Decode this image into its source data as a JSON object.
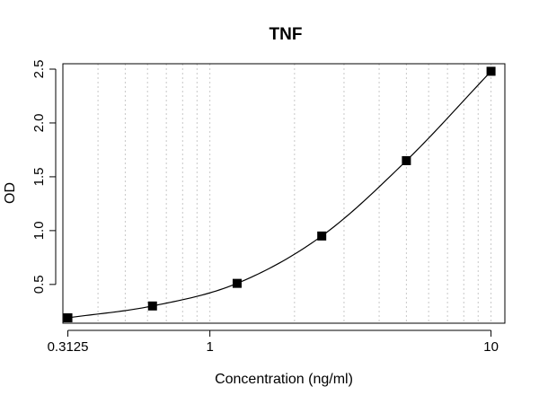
{
  "chart_data": {
    "type": "scatter",
    "title": "TNF",
    "xlabel": "Concentration (ng/ml)",
    "ylabel": "OD",
    "x_scale": "log",
    "xlim": [
      0.3,
      11.2
    ],
    "ylim": [
      0.14,
      2.55
    ],
    "x_ticks": [
      {
        "value": 0.3125,
        "label": "0.3125"
      },
      {
        "value": 1,
        "label": "1"
      },
      {
        "value": 10,
        "label": "10"
      }
    ],
    "y_ticks": [
      {
        "value": 0.5,
        "label": "0.5"
      },
      {
        "value": 1.0,
        "label": "1.0"
      },
      {
        "value": 1.5,
        "label": "1.5"
      },
      {
        "value": 2.0,
        "label": "2.0"
      },
      {
        "value": 2.5,
        "label": "2.5"
      }
    ],
    "grid": {
      "x": true,
      "y": false,
      "style": "dotted",
      "color": "#c8c8c8"
    },
    "points": [
      {
        "x": 0.3125,
        "y": 0.19
      },
      {
        "x": 0.625,
        "y": 0.3
      },
      {
        "x": 1.25,
        "y": 0.51
      },
      {
        "x": 2.5,
        "y": 0.95
      },
      {
        "x": 5,
        "y": 1.65
      },
      {
        "x": 10,
        "y": 2.48
      }
    ],
    "fit_curve": true,
    "marker": "square",
    "colors": {
      "points": "#000000",
      "curve": "#000000",
      "grid": "#c8c8c8"
    }
  }
}
